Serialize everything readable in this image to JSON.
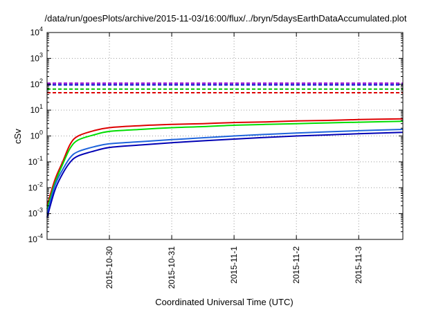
{
  "chart_data": {
    "type": "line",
    "title": "/data/run/goesPlots/archive/2015-11-03/16:00/flux/../bryn/5daysEarthDataAccumulated.plot",
    "xlabel": "Coordinated Universal Time (UTC)",
    "ylabel": "cSv",
    "y_scale": "log",
    "ylim": [
      0.0001,
      10000
    ],
    "xlim": [
      "2015-10-29 00:00",
      "2015-11-03 17:00"
    ],
    "grid": true,
    "legend": "none",
    "x_ticks": [
      "2015-10-30",
      "2015-10-31",
      "2015-11-1",
      "2015-11-2",
      "2015-11-3"
    ],
    "x_tick_values": [
      "2015-10-30 00:00",
      "2015-10-31 00:00",
      "2015-11-01 00:00",
      "2015-11-02 00:00",
      "2015-11-03 00:00"
    ],
    "y_ticks": [
      {
        "base": "10",
        "exp": "-4"
      },
      {
        "base": "10",
        "exp": "-3"
      },
      {
        "base": "10",
        "exp": "-2"
      },
      {
        "base": "10",
        "exp": "-1"
      },
      {
        "base": "10",
        "exp": "0"
      },
      {
        "base": "10",
        "exp": "1"
      },
      {
        "base": "10",
        "exp": "2"
      },
      {
        "base": "10",
        "exp": "3"
      },
      {
        "base": "10",
        "exp": "4"
      }
    ],
    "y_tick_values": [
      0.0001,
      0.001,
      0.01,
      0.1,
      1,
      10,
      100,
      1000,
      10000
    ],
    "thresholds": [
      {
        "color": "#9400d3",
        "value": 110
      },
      {
        "color": "#0000cd",
        "value": 95
      },
      {
        "color": "#00c000",
        "value": 65
      },
      {
        "color": "#dd0000",
        "value": 47
      }
    ],
    "series": [
      {
        "color": "#dd0000",
        "x": [
          "2015-10-29 00:00",
          "2015-10-29 03:00",
          "2015-10-29 06:00",
          "2015-10-29 09:00",
          "2015-10-29 12:00",
          "2015-10-29 18:00",
          "2015-10-30 00:00",
          "2015-10-30 12:00",
          "2015-10-31 00:00",
          "2015-10-31 12:00",
          "2015-11-01 00:00",
          "2015-11-01 12:00",
          "2015-11-02 00:00",
          "2015-11-02 12:00",
          "2015-11-03 00:00",
          "2015-11-03 17:00"
        ],
        "y": [
          0.002,
          0.02,
          0.1,
          0.5,
          1.0,
          1.6,
          2.1,
          2.5,
          2.8,
          3.0,
          3.3,
          3.5,
          3.8,
          4.0,
          4.3,
          4.6
        ]
      },
      {
        "color": "#00dd00",
        "x": [
          "2015-10-29 00:00",
          "2015-10-29 03:00",
          "2015-10-29 06:00",
          "2015-10-29 09:00",
          "2015-10-29 12:00",
          "2015-10-29 18:00",
          "2015-10-30 00:00",
          "2015-10-30 12:00",
          "2015-10-31 00:00",
          "2015-10-31 12:00",
          "2015-11-01 00:00",
          "2015-11-01 12:00",
          "2015-11-02 00:00",
          "2015-11-02 12:00",
          "2015-11-03 00:00",
          "2015-11-03 17:00"
        ],
        "y": [
          0.0015,
          0.015,
          0.08,
          0.35,
          0.7,
          1.1,
          1.5,
          1.8,
          2.1,
          2.3,
          2.6,
          2.8,
          3.0,
          3.2,
          3.4,
          3.7
        ]
      },
      {
        "color": "#1e64dc",
        "x": [
          "2015-10-29 00:00",
          "2015-10-29 03:00",
          "2015-10-29 06:00",
          "2015-10-29 09:00",
          "2015-10-29 12:00",
          "2015-10-29 18:00",
          "2015-10-30 00:00",
          "2015-10-30 12:00",
          "2015-10-31 00:00",
          "2015-10-31 12:00",
          "2015-11-01 00:00",
          "2015-11-01 12:00",
          "2015-11-02 00:00",
          "2015-11-02 12:00",
          "2015-11-03 00:00",
          "2015-11-03 17:00"
        ],
        "y": [
          0.001,
          0.012,
          0.05,
          0.15,
          0.25,
          0.38,
          0.5,
          0.6,
          0.72,
          0.85,
          1.0,
          1.15,
          1.3,
          1.45,
          1.6,
          1.8
        ]
      },
      {
        "color": "#0000b4",
        "x": [
          "2015-10-29 00:00",
          "2015-10-29 03:00",
          "2015-10-29 06:00",
          "2015-10-29 09:00",
          "2015-10-29 12:00",
          "2015-10-29 18:00",
          "2015-10-30 00:00",
          "2015-10-30 12:00",
          "2015-10-31 00:00",
          "2015-10-31 12:00",
          "2015-11-01 00:00",
          "2015-11-01 12:00",
          "2015-11-02 00:00",
          "2015-11-02 12:00",
          "2015-11-03 00:00",
          "2015-11-03 17:00"
        ],
        "y": [
          0.0007,
          0.008,
          0.035,
          0.1,
          0.17,
          0.26,
          0.36,
          0.45,
          0.55,
          0.65,
          0.76,
          0.88,
          1.0,
          1.1,
          1.22,
          1.38
        ]
      }
    ]
  }
}
